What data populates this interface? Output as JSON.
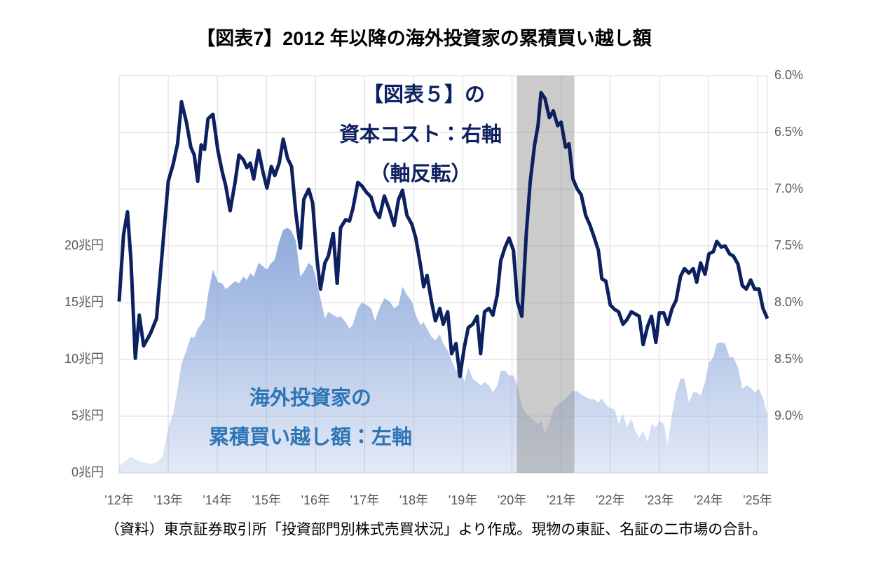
{
  "chart_data": {
    "type": "combo",
    "title": "【図表7】2012 年以降の海外投資家の累積買い越し額",
    "source": "（資料）東京証券取引所「投資部門別株式売買状況」より作成。現物の東証、名証の二市場の合計。",
    "annotations": [
      {
        "text": "【図表５】の",
        "color": "#0d2060"
      },
      {
        "text": "資本コスト：右軸",
        "color": "#0d2060"
      },
      {
        "text": "（軸反転）",
        "color": "#0d2060"
      },
      {
        "text": "海外投資家の",
        "color": "#2e75b6"
      },
      {
        "text": "累積買い越し額：左軸",
        "color": "#2e75b6"
      }
    ],
    "xlim": [
      2012,
      2025.2
    ],
    "xticks": [
      {
        "value": 2012,
        "label": "'12年"
      },
      {
        "value": 2013,
        "label": "'13年"
      },
      {
        "value": 2014,
        "label": "'14年"
      },
      {
        "value": 2015,
        "label": "'15年"
      },
      {
        "value": 2016,
        "label": "'16年"
      },
      {
        "value": 2017,
        "label": "'17年"
      },
      {
        "value": 2018,
        "label": "'18年"
      },
      {
        "value": 2019,
        "label": "'19年"
      },
      {
        "value": 2020,
        "label": "'20年"
      },
      {
        "value": 2021,
        "label": "'21年"
      },
      {
        "value": 2022,
        "label": "'22年"
      },
      {
        "value": 2023,
        "label": "'23年"
      },
      {
        "value": 2024,
        "label": "'24年"
      },
      {
        "value": 2025,
        "label": "'25年"
      }
    ],
    "ylim": [
      0,
      35
    ],
    "yticks": [
      {
        "value": 0,
        "label": "0兆円"
      },
      {
        "value": 5,
        "label": "5兆円"
      },
      {
        "value": 10,
        "label": "10兆円"
      },
      {
        "value": 15,
        "label": "15兆円"
      },
      {
        "value": 20,
        "label": "20兆円"
      }
    ],
    "y2lim": [
      9.5,
      6.0
    ],
    "y2ticks": [
      {
        "value": 6.0,
        "label": "6.0%"
      },
      {
        "value": 6.5,
        "label": "6.5%"
      },
      {
        "value": 7.0,
        "label": "7.0%"
      },
      {
        "value": 7.5,
        "label": "7.5%"
      },
      {
        "value": 8.0,
        "label": "8.0%"
      },
      {
        "value": 8.5,
        "label": "8.5%"
      },
      {
        "value": 9.0,
        "label": "9.0%"
      }
    ],
    "grid": true,
    "highlight": {
      "xrange": [
        2020.1,
        2021.27
      ],
      "color": "#8c8c8c"
    },
    "x": [
      2012.0,
      2012.09,
      2012.17,
      2012.24,
      2012.33,
      2012.41,
      2012.5,
      2012.64,
      2012.76,
      2012.89,
      2013.0,
      2013.1,
      2013.19,
      2013.27,
      2013.37,
      2013.46,
      2013.53,
      2013.6,
      2013.67,
      2013.74,
      2013.81,
      2013.91,
      2014.01,
      2014.1,
      2014.17,
      2014.26,
      2014.36,
      2014.44,
      2014.53,
      2014.6,
      2014.67,
      2014.74,
      2014.84,
      2014.93,
      2015.01,
      2015.1,
      2015.17,
      2015.26,
      2015.34,
      2015.43,
      2015.51,
      2015.6,
      2015.69,
      2015.76,
      2015.86,
      2015.94,
      2016.03,
      2016.1,
      2016.19,
      2016.26,
      2016.36,
      2016.44,
      2016.51,
      2016.61,
      2016.69,
      2016.76,
      2016.86,
      2016.94,
      2017.04,
      2017.13,
      2017.21,
      2017.3,
      2017.4,
      2017.51,
      2017.6,
      2017.69,
      2017.77,
      2017.86,
      2017.96,
      2018.04,
      2018.14,
      2018.2,
      2018.27,
      2018.36,
      2018.44,
      2018.53,
      2018.6,
      2018.69,
      2018.77,
      2018.86,
      2018.94,
      2019.03,
      2019.11,
      2019.2,
      2019.29,
      2019.36,
      2019.44,
      2019.53,
      2019.61,
      2019.7,
      2019.77,
      2019.86,
      2019.94,
      2020.03,
      2020.11,
      2020.2,
      2020.29,
      2020.37,
      2020.46,
      2020.53,
      2020.59,
      2020.67,
      2020.76,
      2020.84,
      2020.93,
      2021,
      2021.09,
      2021.16,
      2021.24,
      2021.33,
      2021.41,
      2021.5,
      2021.59,
      2021.67,
      2021.76,
      2021.83,
      2021.91,
      2022,
      2022.09,
      2022.17,
      2022.26,
      2022.34,
      2022.43,
      2022.51,
      2022.59,
      2022.67,
      2022.76,
      2022.84,
      2022.93,
      2023,
      2023.09,
      2023.17,
      2023.26,
      2023.34,
      2023.43,
      2023.51,
      2023.6,
      2023.69,
      2023.76,
      2023.84,
      2023.93,
      2024.01,
      2024.1,
      2024.17,
      2024.26,
      2024.34,
      2024.43,
      2024.51,
      2024.6,
      2024.69,
      2024.77,
      2024.86,
      2024.94,
      2025.03,
      2025.11,
      2025.2
    ],
    "series": [
      {
        "type": "area",
        "axis": "y",
        "color": "#8faadc",
        "values": [
          0.6,
          0.9,
          1.2,
          1.4,
          1.2,
          1.0,
          0.9,
          0.8,
          0.9,
          1.5,
          4.0,
          5.2,
          7.4,
          9.6,
          10.8,
          12.0,
          11.9,
          12.7,
          13.1,
          13.6,
          15.7,
          17.9,
          16.8,
          16.7,
          16.2,
          16.5,
          16.9,
          16.7,
          17.3,
          17.0,
          17.6,
          17.3,
          18.5,
          18.2,
          17.9,
          18.5,
          18.8,
          20.4,
          21.4,
          21.6,
          21.3,
          20.4,
          17.3,
          17.7,
          18.5,
          18.2,
          16.7,
          15.4,
          13.6,
          14.2,
          13.9,
          13.7,
          13.8,
          13.3,
          12.7,
          13.1,
          14.5,
          15.0,
          14.8,
          14.5,
          13.4,
          14.5,
          15.4,
          15.1,
          14.5,
          14.8,
          16.4,
          15.7,
          15.1,
          13.9,
          13.0,
          13.3,
          12.7,
          12.0,
          11.7,
          12.2,
          11.4,
          10.8,
          9.9,
          9.0,
          9.3,
          8.0,
          9.3,
          8.3,
          8.0,
          7.7,
          8.0,
          7.7,
          7.1,
          7.7,
          9.0,
          9.0,
          8.6,
          8.6,
          7.7,
          5.9,
          5.2,
          4.9,
          4.6,
          4.3,
          4.6,
          3.5,
          4.3,
          5.6,
          6.0,
          6.2,
          6.6,
          6.8,
          7.2,
          7.2,
          6.9,
          6.7,
          6.5,
          6.5,
          6.2,
          6.6,
          6.0,
          5.7,
          5.6,
          4.3,
          5.2,
          4.0,
          4.8,
          3.7,
          3.1,
          3.7,
          2.7,
          4.3,
          4.0,
          4.6,
          4.3,
          2.5,
          5.2,
          7.1,
          8.3,
          8.3,
          6.2,
          7.1,
          7.1,
          6.8,
          8.0,
          9.7,
          10.2,
          11.4,
          11.5,
          11.4,
          10.2,
          10.2,
          9.3,
          7.4,
          7.7,
          7.5,
          7.1,
          7.4,
          6.6,
          5.1
        ]
      },
      {
        "type": "line",
        "axis": "y2",
        "color": "#0d2060",
        "values": [
          7.99,
          7.4,
          7.2,
          7.62,
          8.49,
          8.11,
          8.38,
          8.27,
          8.14,
          7.49,
          6.93,
          6.78,
          6.6,
          6.23,
          6.41,
          6.63,
          6.7,
          6.93,
          6.61,
          6.65,
          6.38,
          6.34,
          6.66,
          6.85,
          6.97,
          7.19,
          6.94,
          6.7,
          6.74,
          6.81,
          6.77,
          6.91,
          6.66,
          6.85,
          6.99,
          6.8,
          6.88,
          6.77,
          6.56,
          6.73,
          6.8,
          7.22,
          7.52,
          7.09,
          7.0,
          7.12,
          7.62,
          7.88,
          7.65,
          7.59,
          7.39,
          7.83,
          7.34,
          7.27,
          7.28,
          7.17,
          6.94,
          6.97,
          7.03,
          7.07,
          7.19,
          7.25,
          7.06,
          7.19,
          7.32,
          7.09,
          7.01,
          7.23,
          7.31,
          7.43,
          7.68,
          7.86,
          7.76,
          7.99,
          8.16,
          8.05,
          8.19,
          8.08,
          8.45,
          8.36,
          8.65,
          8.39,
          8.22,
          8.19,
          8.12,
          8.45,
          8.08,
          8.05,
          8.11,
          7.93,
          7.63,
          7.51,
          7.43,
          7.54,
          7.99,
          8.12,
          7.4,
          6.94,
          6.61,
          6.44,
          6.15,
          6.2,
          6.37,
          6.31,
          6.44,
          6.41,
          6.63,
          6.6,
          6.91,
          7.0,
          7.05,
          7.23,
          7.32,
          7.42,
          7.54,
          7.79,
          7.81,
          8.02,
          8.06,
          8.08,
          8.19,
          8.15,
          8.08,
          8.1,
          8.12,
          8.37,
          8.21,
          8.12,
          8.35,
          8.09,
          8.09,
          8.19,
          8.05,
          7.98,
          7.77,
          7.7,
          7.74,
          7.7,
          7.82,
          7.65,
          7.75,
          7.57,
          7.55,
          7.46,
          7.51,
          7.5,
          7.57,
          7.59,
          7.66,
          7.85,
          7.88,
          7.8,
          7.88,
          7.88,
          8.05,
          8.14
        ]
      }
    ]
  }
}
